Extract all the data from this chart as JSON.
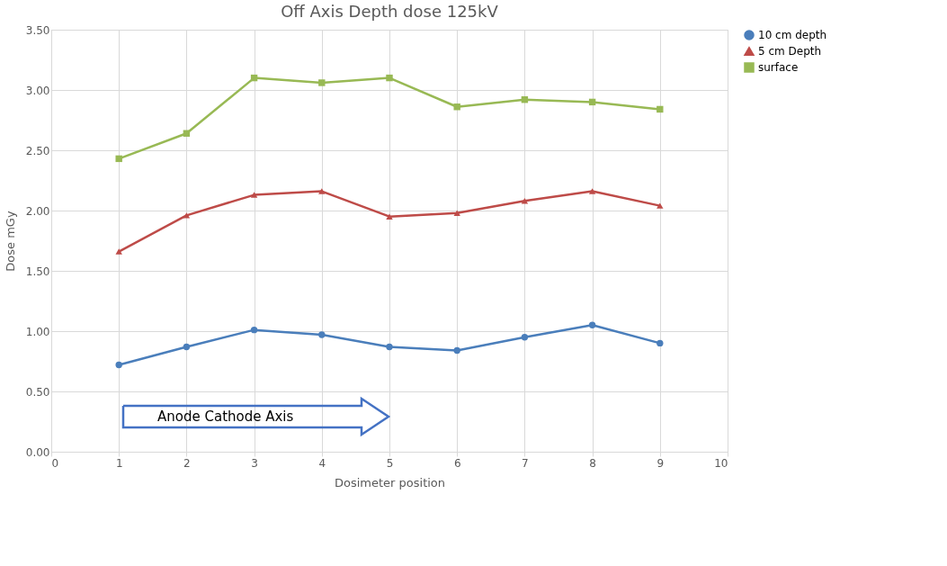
{
  "chart_data": {
    "type": "line",
    "title": "Off Axis Depth dose 125kV",
    "xlabel": "Dosimeter position",
    "ylabel": "Dose mGy",
    "x": [
      1,
      2,
      3,
      4,
      5,
      6,
      7,
      8,
      9
    ],
    "series": [
      {
        "name": "10 cm depth",
        "color": "#4a7ebb",
        "marker": "circle",
        "values": [
          0.72,
          0.87,
          1.01,
          0.97,
          0.87,
          0.84,
          0.95,
          1.05,
          0.9
        ]
      },
      {
        "name": "5 cm Depth",
        "color": "#be4b48",
        "marker": "triangle",
        "values": [
          1.66,
          1.96,
          2.13,
          2.16,
          1.95,
          1.98,
          2.08,
          2.16,
          2.04
        ]
      },
      {
        "name": "surface",
        "color": "#98b954",
        "marker": "square",
        "values": [
          2.43,
          2.64,
          3.1,
          3.06,
          3.1,
          2.86,
          2.92,
          2.9,
          2.84
        ]
      }
    ],
    "xlim": [
      0,
      10
    ],
    "xticks": [
      0,
      1,
      2,
      3,
      4,
      5,
      6,
      7,
      8,
      9,
      10
    ],
    "ylim": [
      0,
      3.5
    ],
    "yticks": [
      {
        "value": 0,
        "label": "0.00"
      },
      {
        "value": 0.5,
        "label": "0.50"
      },
      {
        "value": 1,
        "label": "1.00"
      },
      {
        "value": 1.5,
        "label": "1.50"
      },
      {
        "value": 2,
        "label": "2.00"
      },
      {
        "value": 2.5,
        "label": "2.50"
      },
      {
        "value": 3,
        "label": "3.00"
      },
      {
        "value": 3.5,
        "label": "3.50"
      }
    ],
    "annotations": [
      "Anode Cathode Axis"
    ],
    "grid": true,
    "legend": "right",
    "line_style": "solid"
  }
}
